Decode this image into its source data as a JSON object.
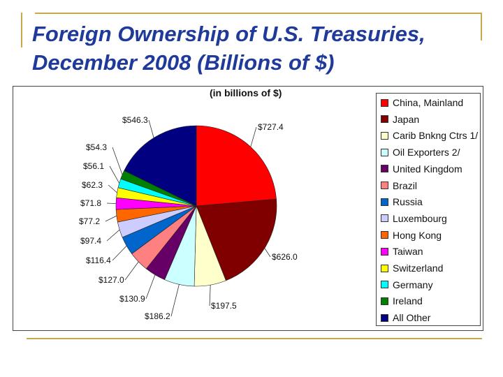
{
  "title": "Foreign Ownership of U.S. Treasuries, December 2008 (Billions of $)",
  "chart_data": {
    "type": "pie",
    "title": "(in billions of $)",
    "legend_position": "right",
    "slices": [
      {
        "name": "China, Mainland",
        "value": 727.4,
        "label": "$727.4",
        "color": "#ff0000"
      },
      {
        "name": "Japan",
        "value": 626.0,
        "label": "$626.0",
        "color": "#800000"
      },
      {
        "name": "Carib Bnkng Ctrs 1/",
        "value": 197.5,
        "label": "$197.5",
        "color": "#ffffcc"
      },
      {
        "name": "Oil Exporters 2/",
        "value": 186.2,
        "label": "$186.2",
        "color": "#ccffff"
      },
      {
        "name": "United Kingdom",
        "value": 130.9,
        "label": "$130.9",
        "color": "#660066"
      },
      {
        "name": "Brazil",
        "value": 127.0,
        "label": "$127.0",
        "color": "#ff8080"
      },
      {
        "name": "Russia",
        "value": 116.4,
        "label": "$116.4",
        "color": "#0066cc"
      },
      {
        "name": "Luxembourg",
        "value": 97.4,
        "label": "$97.4",
        "color": "#ccccff"
      },
      {
        "name": "Hong Kong",
        "value": 77.2,
        "label": "$77.2",
        "color": "#ff6600"
      },
      {
        "name": "Taiwan",
        "value": 71.8,
        "label": "$71.8",
        "color": "#ff00ff"
      },
      {
        "name": "Switzerland",
        "value": 62.3,
        "label": "$62.3",
        "color": "#ffff00"
      },
      {
        "name": "Germany",
        "value": 56.1,
        "label": "$56.1",
        "color": "#00ffff"
      },
      {
        "name": "Ireland",
        "value": 54.3,
        "label": "$54.3",
        "color": "#008000"
      },
      {
        "name": "All Other",
        "value": 546.3,
        "label": "$546.3",
        "color": "#000080"
      }
    ]
  }
}
